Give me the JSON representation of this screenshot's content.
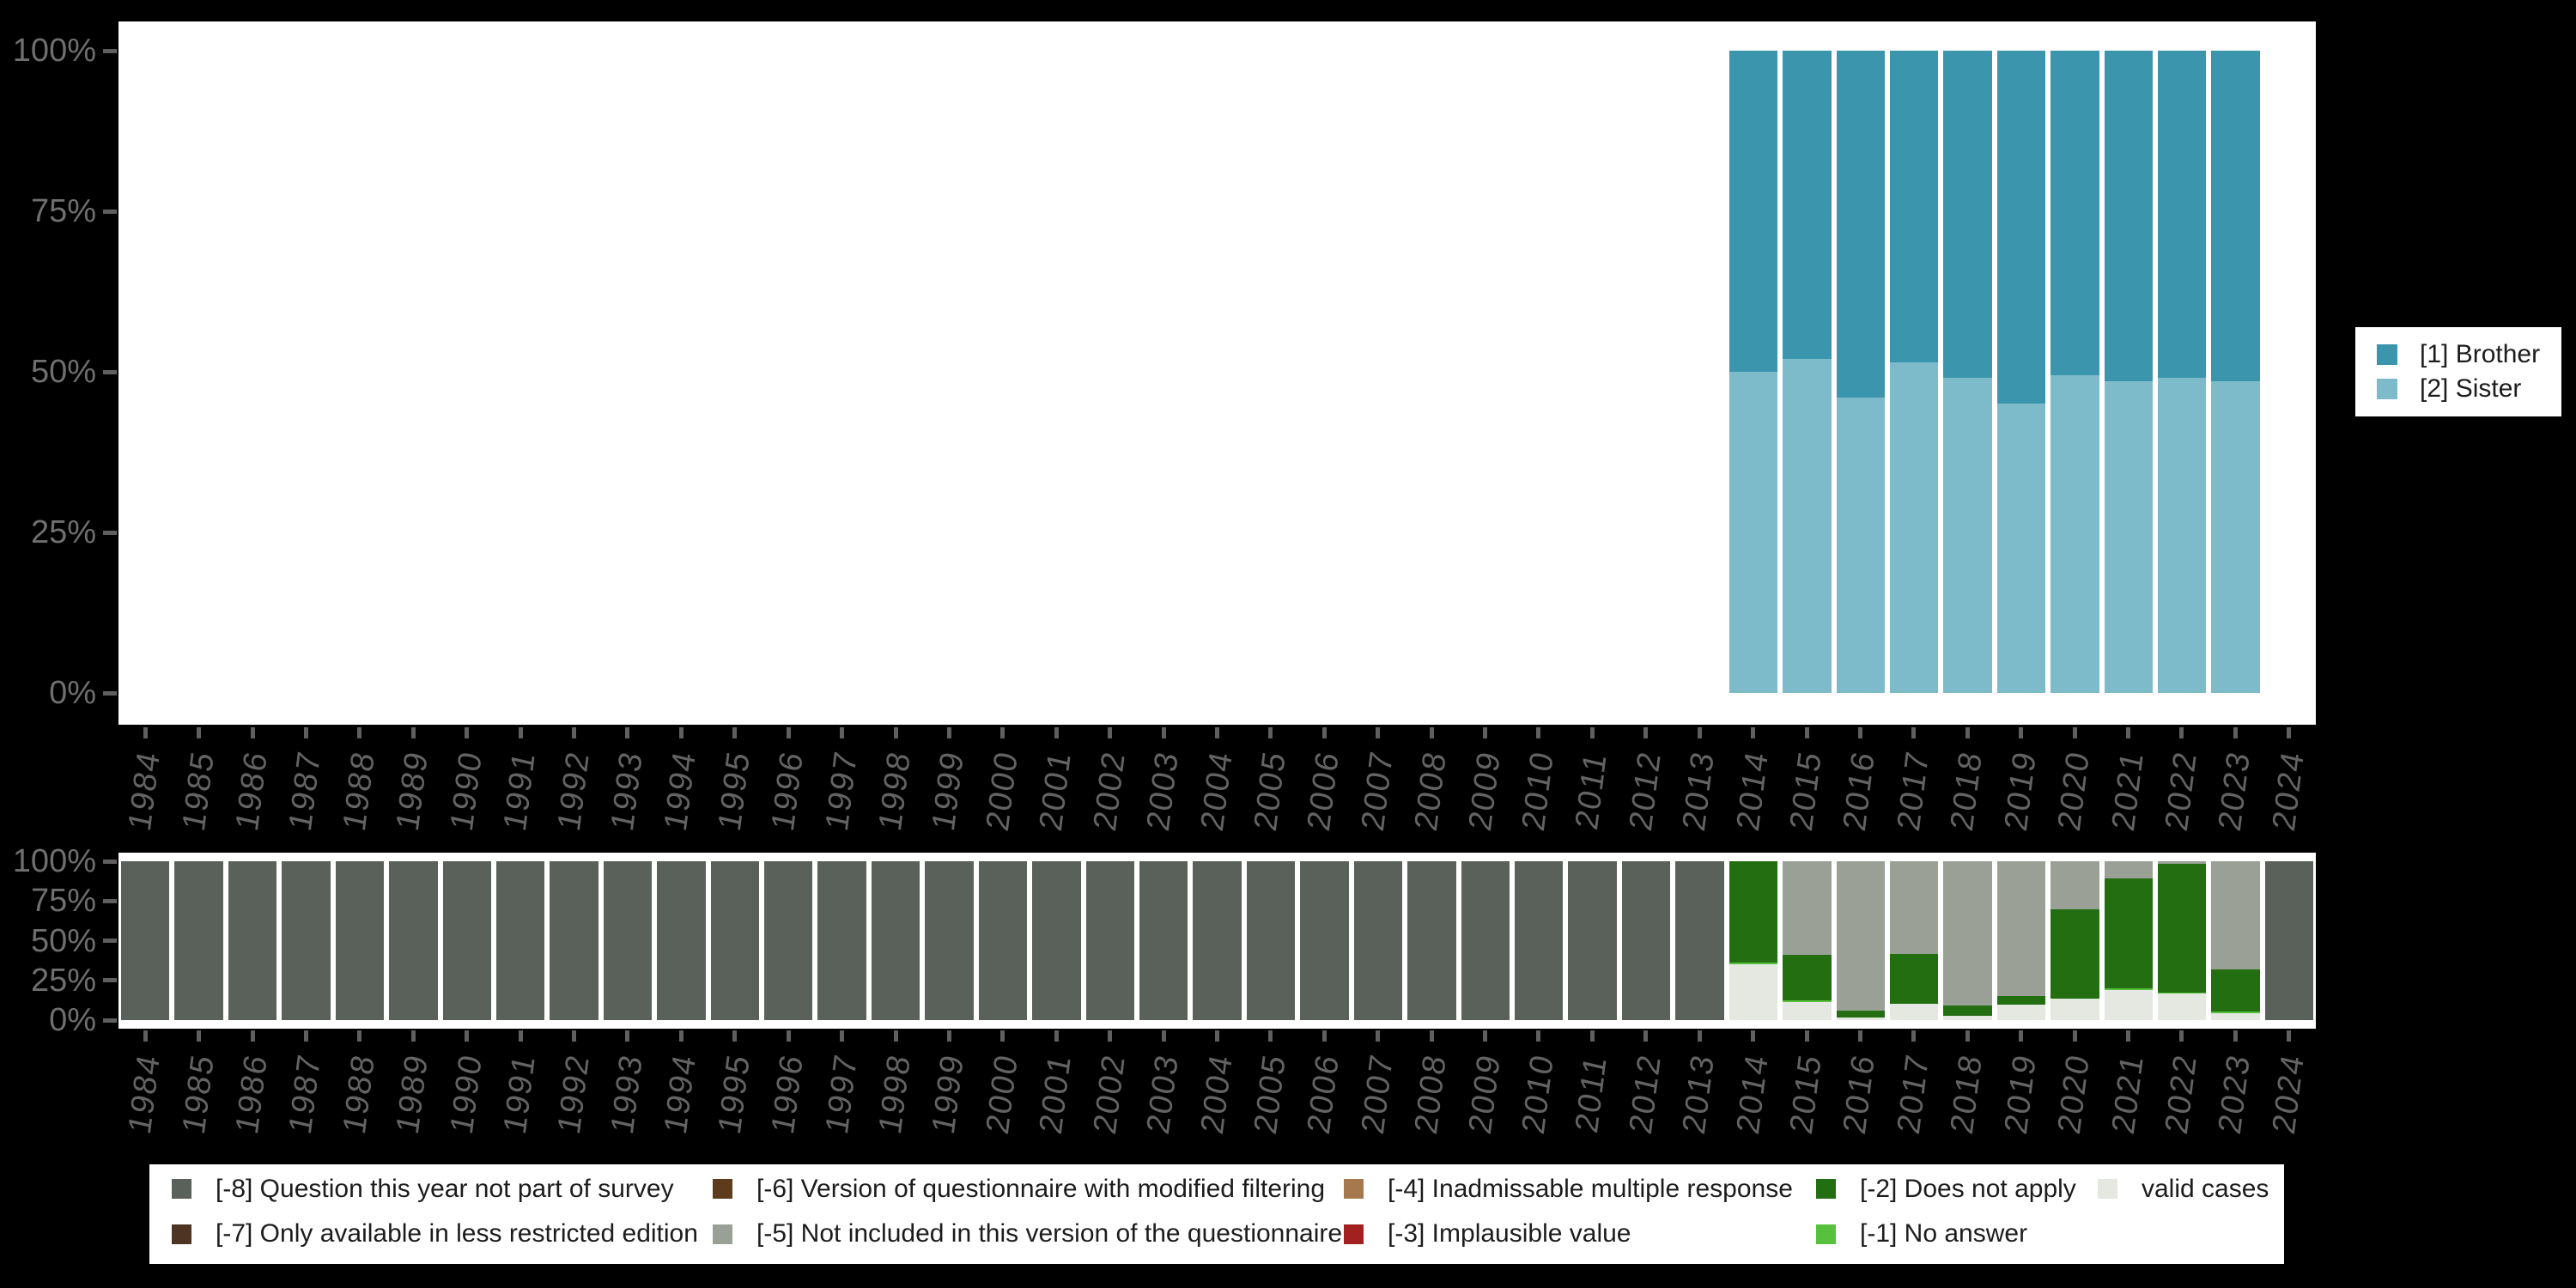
{
  "page": {
    "background": "#000000",
    "panel_background": "#ffffff"
  },
  "years": [
    "1984",
    "1985",
    "1986",
    "1987",
    "1988",
    "1989",
    "1990",
    "1991",
    "1992",
    "1993",
    "1994",
    "1995",
    "1996",
    "1997",
    "1998",
    "1999",
    "2000",
    "2001",
    "2002",
    "2003",
    "2004",
    "2005",
    "2006",
    "2007",
    "2008",
    "2009",
    "2010",
    "2011",
    "2012",
    "2013",
    "2014",
    "2015",
    "2016",
    "2017",
    "2018",
    "2019",
    "2020",
    "2021",
    "2022",
    "2023",
    "2024"
  ],
  "y_axis": {
    "tick_labels": [
      "100%",
      "75%",
      "50%",
      "25%",
      "0%"
    ],
    "label_color": "#6f6f6f",
    "tick_color": "#5f5f5f",
    "year_label_color": "#636363"
  },
  "side_legend": {
    "items": [
      {
        "label": "[1] Brother",
        "color": "#3b96ad"
      },
      {
        "label": "[2] Sister",
        "color": "#7dbaca"
      }
    ]
  },
  "missing_legend": {
    "items": [
      {
        "key": "-8",
        "label": "[-8] Question this year not part of survey",
        "color": "#5a615a"
      },
      {
        "key": "-7",
        "label": "[-7] Only available in less restricted edition",
        "color": "#4e3422"
      },
      {
        "key": "-6",
        "label": "[-6] Version of questionnaire with modified filtering",
        "color": "#5e3b1b"
      },
      {
        "key": "-5",
        "label": "[-5] Not included in this version of the questionnaire",
        "color": "#9aa096"
      },
      {
        "key": "-4",
        "label": "[-4] Inadmissable multiple response",
        "color": "#a5794d"
      },
      {
        "key": "-3",
        "label": "[-3] Implausible value",
        "color": "#a32020"
      },
      {
        "key": "-2",
        "label": "[-2] Does not apply",
        "color": "#226e11"
      },
      {
        "key": "-1",
        "label": "[-1] No answer",
        "color": "#57c13e"
      },
      {
        "key": "valid",
        "label": "valid cases",
        "color": "#e4e8e0"
      }
    ]
  },
  "chart_data": [
    {
      "type": "bar",
      "stacked": true,
      "title": "",
      "ylabel": "",
      "ylim": [
        0,
        100
      ],
      "y_ticks": [
        "0%",
        "25%",
        "50%",
        "75%",
        "100%"
      ],
      "grid": false,
      "legend_position": "right",
      "categories": [
        "1984",
        "1985",
        "1986",
        "1987",
        "1988",
        "1989",
        "1990",
        "1991",
        "1992",
        "1993",
        "1994",
        "1995",
        "1996",
        "1997",
        "1998",
        "1999",
        "2000",
        "2001",
        "2002",
        "2003",
        "2004",
        "2005",
        "2006",
        "2007",
        "2008",
        "2009",
        "2010",
        "2011",
        "2012",
        "2013",
        "2014",
        "2015",
        "2016",
        "2017",
        "2018",
        "2019",
        "2020",
        "2021",
        "2022",
        "2023",
        "2024"
      ],
      "series_names": [
        "[1] Brother",
        "[2] Sister"
      ],
      "values_by_year": {
        "2014": [
          50,
          50
        ],
        "2015": [
          48,
          52
        ],
        "2016": [
          54,
          46
        ],
        "2017": [
          48.5,
          51.5
        ],
        "2018": [
          51,
          49
        ],
        "2019": [
          55,
          45
        ],
        "2020": [
          50.5,
          49.5
        ],
        "2021": [
          51.5,
          48.5
        ],
        "2022": [
          51,
          49
        ],
        "2023": [
          51.5,
          48.5
        ]
      }
    },
    {
      "type": "bar",
      "stacked": true,
      "title": "",
      "ylabel": "",
      "ylim": [
        0,
        100
      ],
      "y_ticks": [
        "0%",
        "25%",
        "50%",
        "75%",
        "100%"
      ],
      "grid": false,
      "legend_position": "bottom",
      "categories": [
        "1984",
        "1985",
        "1986",
        "1987",
        "1988",
        "1989",
        "1990",
        "1991",
        "1992",
        "1993",
        "1994",
        "1995",
        "1996",
        "1997",
        "1998",
        "1999",
        "2000",
        "2001",
        "2002",
        "2003",
        "2004",
        "2005",
        "2006",
        "2007",
        "2008",
        "2009",
        "2010",
        "2011",
        "2012",
        "2013",
        "2014",
        "2015",
        "2016",
        "2017",
        "2018",
        "2019",
        "2020",
        "2021",
        "2022",
        "2023",
        "2024"
      ],
      "default_segments": [
        [
          "-8",
          100
        ]
      ],
      "segments_by_year": {
        "2014": [
          [
            "-2",
            64
          ],
          [
            "-1",
            1
          ],
          [
            "valid",
            35
          ]
        ],
        "2015": [
          [
            "-5",
            59
          ],
          [
            "-2",
            28.5
          ],
          [
            "-1",
            1
          ],
          [
            "valid",
            11.5
          ]
        ],
        "2016": [
          [
            "-5",
            94
          ],
          [
            "-2",
            4.5
          ],
          [
            "valid",
            1.5
          ]
        ],
        "2017": [
          [
            "-5",
            58.5
          ],
          [
            "-2",
            31.5
          ],
          [
            "valid",
            10
          ]
        ],
        "2018": [
          [
            "-5",
            91
          ],
          [
            "-2",
            6.5
          ],
          [
            "valid",
            2.5
          ]
        ],
        "2019": [
          [
            "-5",
            85
          ],
          [
            "-2",
            5.5
          ],
          [
            "valid",
            9.5
          ]
        ],
        "2020": [
          [
            "-5",
            30
          ],
          [
            "-2",
            56.5
          ],
          [
            "valid",
            13.5
          ]
        ],
        "2021": [
          [
            "-5",
            11
          ],
          [
            "-2",
            69
          ],
          [
            "-1",
            1
          ],
          [
            "valid",
            19
          ]
        ],
        "2022": [
          [
            "-5",
            1.5
          ],
          [
            "-2",
            81
          ],
          [
            "-1",
            1
          ],
          [
            "valid",
            16.5
          ]
        ],
        "2023": [
          [
            "-5",
            68
          ],
          [
            "-2",
            26.5
          ],
          [
            "-1",
            1
          ],
          [
            "valid",
            4.5
          ]
        ]
      }
    }
  ]
}
